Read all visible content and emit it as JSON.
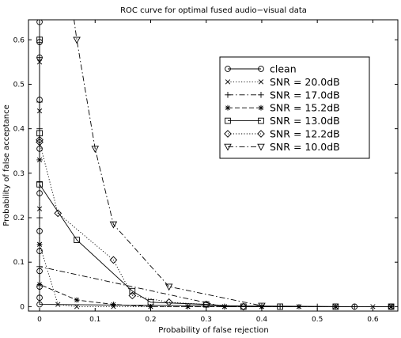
{
  "chart_data": {
    "type": "line",
    "title": "ROC curve for optimal fused audio−visual data",
    "xlabel": "Probability of false rejection",
    "ylabel": "Probability of false acceptance",
    "xlim": [
      -0.02,
      0.645
    ],
    "ylim": [
      -0.01,
      0.645
    ],
    "xticks": [
      0,
      0.1,
      0.2,
      0.3,
      0.4,
      0.5,
      0.6
    ],
    "xtick_labels": [
      "0",
      "0.1",
      "0.2",
      "0.3",
      "0.4",
      "0.5",
      "0.6"
    ],
    "yticks": [
      0,
      0.1,
      0.2,
      0.3,
      0.4,
      0.5,
      0.6
    ],
    "ytick_labels": [
      "0",
      "0.1",
      "0.2",
      "0.3",
      "0.4",
      "0.5",
      "0.6"
    ],
    "grid": false,
    "legend_position": "top-right",
    "series": [
      {
        "name": "clean",
        "marker": "circle",
        "dash": "solid",
        "x": [
          0,
          0,
          0,
          0,
          0,
          0,
          0,
          0,
          0,
          0,
          0,
          0,
          0.567,
          0.633
        ],
        "y": [
          0.64,
          0.595,
          0.56,
          0.465,
          0.355,
          0.255,
          0.17,
          0.125,
          0.08,
          0.045,
          0.02,
          0.005,
          0,
          0
        ]
      },
      {
        "name": "SNR = 20.0dB",
        "marker": "x",
        "dash": "dotted",
        "x": [
          0,
          0,
          0,
          0,
          0,
          0.033,
          0.067,
          0.133,
          0.2,
          0.267,
          0.333,
          0.4,
          0.467,
          0.533,
          0.6,
          0.633
        ],
        "y": [
          0.55,
          0.44,
          0.33,
          0.22,
          0.14,
          0.005,
          0,
          0,
          0,
          0,
          0,
          0,
          0,
          0,
          0,
          0
        ]
      },
      {
        "name": "SNR = 17.0dB",
        "marker": "plus",
        "dash": "dashdot",
        "x": [
          0,
          0,
          0,
          0,
          0,
          0,
          0,
          0.333,
          0.4,
          0.433,
          0.5,
          0.567,
          0.633
        ],
        "y": [
          0.56,
          0.46,
          0.4,
          0.33,
          0.28,
          0.2,
          0.09,
          0,
          0,
          0,
          0,
          0,
          0
        ]
      },
      {
        "name": "SNR = 15.2dB",
        "marker": "asterisk",
        "dash": "dashed",
        "x": [
          0,
          0,
          0.067,
          0.133,
          0.2,
          0.267,
          0.333,
          0.4,
          0.467,
          0.533,
          0.633
        ],
        "y": [
          0.14,
          0.05,
          0.015,
          0.005,
          0,
          0,
          0,
          0,
          0,
          0,
          0
        ]
      },
      {
        "name": "SNR = 13.0dB",
        "marker": "square",
        "dash": "solid",
        "x": [
          0,
          0,
          0,
          0.067,
          0.167,
          0.2,
          0.3,
          0.367,
          0.433,
          0.533,
          0.633
        ],
        "y": [
          0.6,
          0.39,
          0.275,
          0.15,
          0.035,
          0.01,
          0.005,
          0,
          0,
          0,
          0
        ]
      },
      {
        "name": "SNR = 12.2dB",
        "marker": "diamond",
        "dash": "dotted",
        "x": [
          0,
          0,
          0.033,
          0.133,
          0.167,
          0.233,
          0.3,
          0.367
        ],
        "y": [
          0.375,
          0.37,
          0.21,
          0.105,
          0.025,
          0.01,
          0.005,
          0
        ]
      },
      {
        "name": "SNR = 10.0dB",
        "marker": "triangle-down",
        "dash": "dashdot",
        "x": [
          0.067,
          0.1,
          0.133,
          0.233,
          0.4
        ],
        "y": [
          0.6,
          0.355,
          0.185,
          0.045,
          0.002
        ]
      }
    ]
  }
}
